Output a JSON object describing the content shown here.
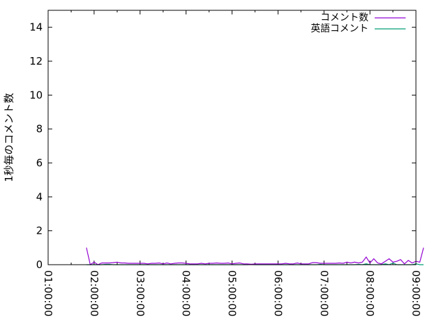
{
  "chart_data": {
    "type": "line",
    "title": "",
    "xlabel": "",
    "ylabel": "1秒毎のコメント数",
    "xlim": [
      "01:00:00",
      "09:00:00"
    ],
    "ylim": [
      0,
      15
    ],
    "x_tick_labels": [
      "01:00:00",
      "02:00:00",
      "03:00:00",
      "04:00:00",
      "05:00:00",
      "06:00:00",
      "07:00:00",
      "08:00:00",
      "09:00:00"
    ],
    "y_ticks": [
      0,
      2,
      4,
      6,
      8,
      10,
      12,
      14
    ],
    "y_tick_labels": [
      "0",
      "2",
      "4",
      "6",
      "8",
      "10",
      "12",
      "14"
    ],
    "grid": false,
    "legend_position": "top-right",
    "x_start": "01:50:00",
    "x_step_minutes": 5,
    "series": [
      {
        "name": "コメント数",
        "color": "#9400d3",
        "values": [
          1.0,
          0.0,
          0.15,
          0.0,
          0.1,
          0.1,
          0.1,
          0.12,
          0.15,
          0.1,
          0.1,
          0.08,
          0.08,
          0.08,
          0.08,
          0.08,
          0.05,
          0.08,
          0.08,
          0.1,
          0.05,
          0.1,
          0.05,
          0.08,
          0.1,
          0.1,
          0.08,
          0.05,
          0.05,
          0.05,
          0.08,
          0.05,
          0.08,
          0.08,
          0.1,
          0.08,
          0.08,
          0.1,
          0.05,
          0.08,
          0.1,
          0.05,
          0.05,
          0.03,
          0.05,
          0.05,
          0.05,
          0.05,
          0.05,
          0.05,
          0.05,
          0.05,
          0.08,
          0.05,
          0.05,
          0.1,
          0.05,
          0.05,
          0.05,
          0.12,
          0.12,
          0.08,
          0.08,
          0.08,
          0.08,
          0.08,
          0.1,
          0.08,
          0.15,
          0.1,
          0.15,
          0.1,
          0.15,
          0.45,
          0.1,
          0.35,
          0.1,
          0.05,
          0.2,
          0.35,
          0.15,
          0.2,
          0.3,
          0.05,
          0.25,
          0.1,
          0.2,
          0.15,
          1.0
        ]
      },
      {
        "name": "英語コメント",
        "color": "#009e73",
        "values": [
          0,
          0,
          0,
          0,
          0,
          0.02,
          0.02,
          0,
          0,
          0,
          0,
          0,
          0,
          0,
          0,
          0,
          0,
          0,
          0,
          0,
          0,
          0,
          0,
          0,
          0,
          0,
          0,
          0,
          0,
          0,
          0,
          0,
          0,
          0,
          0,
          0,
          0,
          0,
          0,
          0,
          0,
          0,
          0,
          0.02,
          0,
          0,
          0,
          0,
          0,
          0,
          0,
          0,
          0,
          0,
          0,
          0,
          0,
          0,
          0,
          0,
          0,
          0.02,
          0,
          0,
          0,
          0,
          0,
          0,
          0,
          0,
          0,
          0.02,
          0,
          0.05,
          0,
          0,
          0,
          0,
          0.05,
          0,
          0.1,
          0,
          0,
          0,
          0,
          0,
          0.05,
          0,
          0
        ]
      }
    ]
  }
}
